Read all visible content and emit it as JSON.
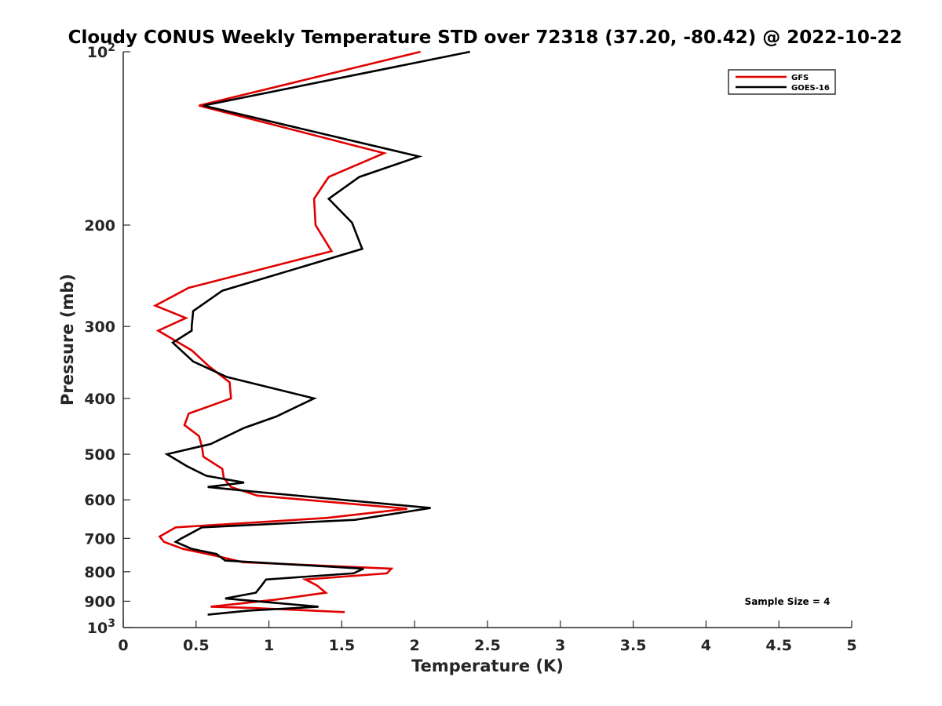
{
  "chart_data": {
    "type": "line",
    "title": "Cloudy CONUS Weekly Temperature STD over 72318 (37.20, -80.42) @ 2022-10-22",
    "xlabel": "Temperature (K)",
    "ylabel": "Pressure (mb)",
    "xlim": [
      0,
      5
    ],
    "ylim": [
      100,
      1000
    ],
    "yscale": "log",
    "yaxis_reversed": true,
    "x_ticks": [
      0,
      0.5,
      1,
      1.5,
      2,
      2.5,
      3,
      3.5,
      4,
      4.5,
      5
    ],
    "x_tick_labels": [
      "0",
      "0.5",
      "1",
      "1.5",
      "2",
      "2.5",
      "3",
      "3.5",
      "4",
      "4.5",
      "5"
    ],
    "y_ticks": [
      200,
      300,
      400,
      500,
      600,
      700,
      800,
      900
    ],
    "y_tick_labels": [
      "200",
      "300",
      "400",
      "500",
      "600",
      "700",
      "800",
      "900"
    ],
    "y_limit_labels": [
      {
        "value": 100,
        "base": "10",
        "exp": "2"
      },
      {
        "value": 1000,
        "base": "10",
        "exp": "3"
      }
    ],
    "grid": false,
    "legend_position": "top-right",
    "annotation": "Sample Size = 4",
    "series": [
      {
        "name": "GFS",
        "color": "#e00000",
        "x": [
          2.04,
          0.52,
          1.79,
          1.41,
          1.31,
          1.32,
          1.43,
          0.45,
          0.22,
          0.43,
          0.24,
          0.47,
          0.59,
          0.73,
          0.74,
          0.45,
          0.42,
          0.52,
          0.54,
          0.55,
          0.68,
          0.69,
          0.74,
          0.92,
          1.95,
          1.4,
          0.36,
          0.25,
          0.28,
          0.41,
          0.63,
          0.82,
          1.84,
          1.81,
          1.25,
          1.33,
          1.39,
          1.04,
          0.6,
          0.89,
          1.52
        ],
        "y": [
          100,
          124,
          150,
          165,
          180,
          200,
          222,
          257,
          276,
          290,
          305,
          330,
          352,
          375,
          400,
          425,
          445,
          465,
          485,
          505,
          530,
          550,
          570,
          590,
          622,
          645,
          670,
          695,
          710,
          730,
          750,
          770,
          790,
          805,
          825,
          845,
          870,
          895,
          920,
          925,
          940
        ]
      },
      {
        "name": "GOES-16",
        "color": "#000000",
        "x": [
          2.38,
          0.55,
          2.03,
          1.62,
          1.41,
          1.57,
          1.64,
          0.68,
          0.48,
          0.47,
          0.47,
          0.34,
          0.48,
          0.71,
          1.31,
          1.05,
          0.83,
          0.6,
          0.3,
          0.44,
          0.57,
          0.83,
          0.58,
          0.88,
          2.11,
          1.59,
          0.54,
          0.4,
          0.36,
          0.47,
          0.64,
          0.7,
          1.65,
          1.58,
          0.98,
          0.95,
          0.91,
          0.7,
          1.34,
          0.85,
          0.58
        ],
        "y": [
          100,
          124,
          152,
          165,
          180,
          198,
          220,
          260,
          282,
          300,
          305,
          320,
          345,
          367,
          400,
          430,
          450,
          480,
          500,
          525,
          545,
          560,
          570,
          580,
          620,
          650,
          670,
          700,
          710,
          730,
          745,
          765,
          790,
          805,
          825,
          845,
          870,
          890,
          920,
          935,
          950
        ]
      }
    ]
  }
}
